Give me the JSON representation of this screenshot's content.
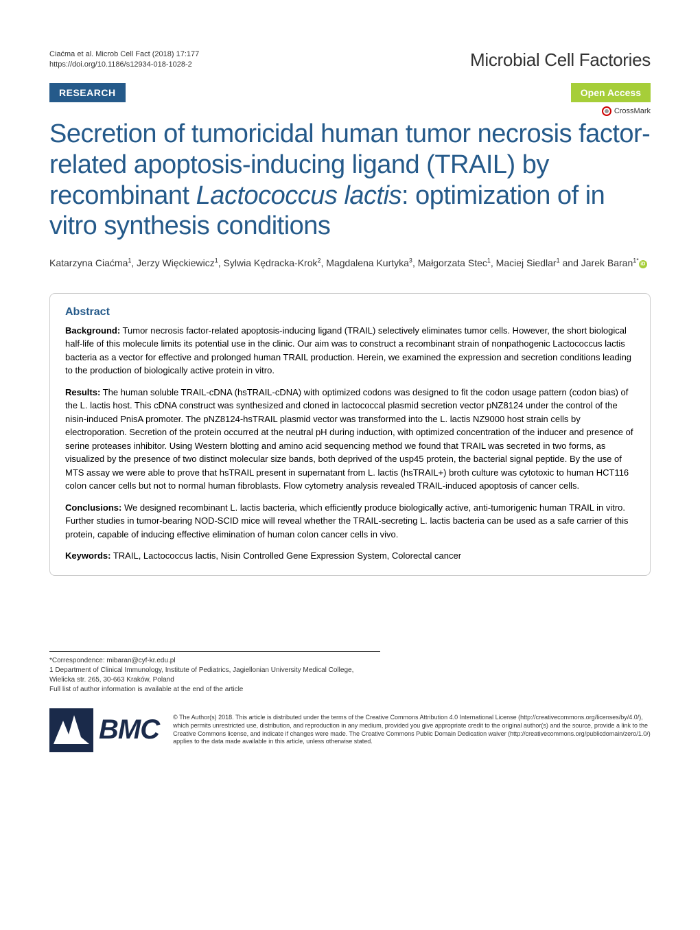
{
  "header": {
    "citation": "Ciaćma et al. Microb Cell Fact          (2018) 17:177 ",
    "doi": "https://doi.org/10.1186/s12934-018-1028-2",
    "journal": "Microbial Cell Factories"
  },
  "badges": {
    "research": "RESEARCH",
    "open_access": "Open Access",
    "crossmark": "CrossMark"
  },
  "title_parts": {
    "line1": "Secretion of tumoricidal human tumor necrosis factor-related apoptosis-inducing ligand (TRAIL) by recombinant ",
    "italic1": "Lactococcus lactis",
    "line2": ": optimization of in vitro synthesis conditions"
  },
  "authors_html": "Katarzyna Ciaćma<sup>1</sup>, Jerzy Więckiewicz<sup>1</sup>, Sylwia Kędracka-Krok<sup>2</sup>, Magdalena Kurtyka<sup>3</sup>, Małgorzata Stec<sup>1</sup>, Maciej Siedlar<sup>1</sup> and Jarek Baran<sup>1*</sup>",
  "abstract": {
    "heading": "Abstract",
    "background_label": "Background:",
    "background_text": "  Tumor necrosis factor-related apoptosis-inducing ligand (TRAIL) selectively eliminates tumor cells. However, the short biological half-life of this molecule limits its potential use in the clinic. Our aim was to construct a recombinant strain of nonpathogenic Lactococcus lactis bacteria as a vector for effective and prolonged human TRAIL production. Herein, we examined the expression and secretion conditions leading to the production of biologically active protein in vitro.",
    "results_label": "Results:",
    "results_text": "  The human soluble TRAIL-cDNA (hsTRAIL-cDNA) with optimized codons was designed to fit the codon usage pattern (codon bias) of the L. lactis host. This cDNA construct was synthesized and cloned in lactococcal plasmid secretion vector pNZ8124 under the control of the nisin-induced PnisA promoter. The pNZ8124-hsTRAIL plasmid vector was transformed into the L. lactis NZ9000 host strain cells by electroporation. Secretion of the protein occurred at the neutral pH during induction, with optimized concentration of the inducer and presence of serine proteases inhibitor. Using Western blotting and amino acid sequencing method we found that TRAIL was secreted in two forms, as visualized by the presence of two distinct molecular size bands, both deprived of the usp45 protein, the bacterial signal peptide. By the use of MTS assay we were able to prove that hsTRAIL present in supernatant from L. lactis (hsTRAIL+) broth culture was cytotoxic to human HCT116 colon cancer cells but not to normal human fibroblasts. Flow cytometry analysis revealed TRAIL-induced apoptosis of cancer cells.",
    "conclusions_label": "Conclusions:",
    "conclusions_text": "  We designed recombinant L. lactis bacteria, which efficiently produce biologically active, anti-tumorigenic human TRAIL in vitro. Further studies in tumor-bearing NOD-SCID mice will reveal whether the TRAIL-secreting L. lactis bacteria can be used as a safe carrier of this protein, capable of inducing effective elimination of human colon cancer cells in vivo.",
    "keywords_label": "Keywords:",
    "keywords_text": "  TRAIL, Lactococcus lactis, Nisin Controlled Gene Expression System, Colorectal cancer"
  },
  "footer": {
    "correspondence": "*Correspondence:  mibaran@cyf-kr.edu.pl",
    "affiliation": "1 Department of Clinical Immunology, Institute of Pediatrics, Jagiellonian University Medical College, Wielicka str. 265, 30-663 Kraków, Poland",
    "full_list": "Full list of author information is available at the end of the article",
    "bmc": "BMC",
    "license": "© The Author(s) 2018. This article is distributed under the terms of the Creative Commons Attribution 4.0 International License (http://creativecommons.org/licenses/by/4.0/), which permits unrestricted use, distribution, and reproduction in any medium, provided you give appropriate credit to the original author(s) and the source, provide a link to the Creative Commons license, and indicate if changes were made. The Creative Commons Public Domain Dedication waiver (http://creativecommons.org/publicdomain/zero/1.0/) applies to the data made available in this article, unless otherwise stated."
  },
  "colors": {
    "primary_blue": "#255a8a",
    "badge_green": "#a6ce39",
    "bmc_navy": "#1a2a4a",
    "text": "#333333",
    "border": "#cccccc"
  },
  "typography": {
    "title_fontsize": 38,
    "journal_fontsize": 26,
    "body_fontsize": 13,
    "footer_fontsize": 10
  }
}
